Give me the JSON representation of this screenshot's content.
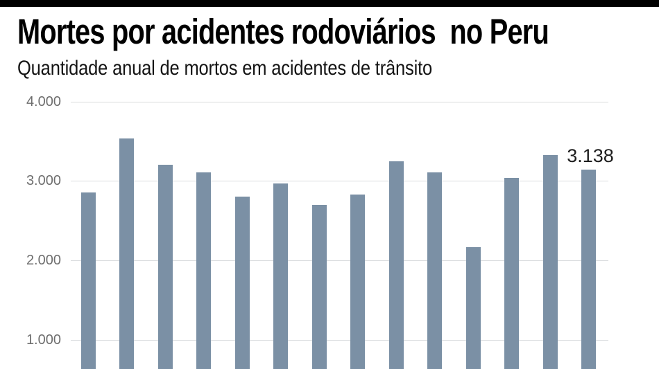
{
  "meta": {
    "background": "#ffffff",
    "top_rule_color": "#000000"
  },
  "header": {
    "title": "Mortes por acidentes rodoviários  no Peru",
    "subtitle": "Quantidade anual de mortos em acidentes de trânsito"
  },
  "chart_data": {
    "type": "bar",
    "title": "Mortes por acidentes rodoviários no Peru",
    "subtitle": "Quantidade anual de mortos em acidentes de trânsito",
    "values": [
      2856,
      3531,
      3206,
      3110,
      2798,
      2965,
      2696,
      2826,
      3244,
      3110,
      2164,
      3034,
      3321,
      3138
    ],
    "bar_count": 14,
    "annotation": {
      "text": "3.138",
      "value": 3138,
      "bar_index": 13
    },
    "y_axis": {
      "ticks": [
        {
          "value": 4000,
          "label": "4.000"
        },
        {
          "value": 3000,
          "label": "3.000"
        },
        {
          "value": 2000,
          "label": "2.000"
        },
        {
          "value": 1000,
          "label": "1.000"
        }
      ],
      "visible_range_top": 4200
    },
    "x_axis": {
      "labels_visible": false
    },
    "legend": false,
    "grid": "horizontal",
    "colors": {
      "bar": "#7B90A5",
      "gridline": "#D9DBDD",
      "tick_text": "#6E6E6E",
      "annotation_text": "#1D1D1D"
    }
  }
}
